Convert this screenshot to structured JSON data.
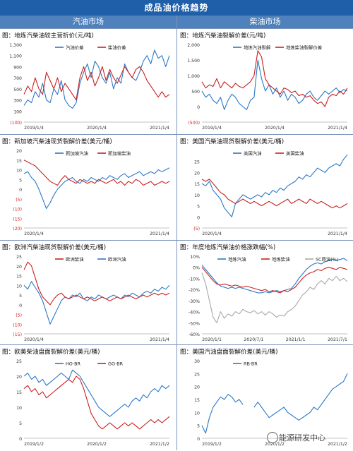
{
  "header": {
    "title": "成品油价格趋势",
    "left": "汽油市场",
    "right": "柴油市场"
  },
  "watermark": "能源研发中心",
  "colors": {
    "blue": "#2a78c8",
    "red": "#cc1f1f",
    "gray": "#a8a8a8",
    "banner": "#1f5fa9",
    "subheader": "#4f81bd"
  },
  "chart_data": [
    {
      "type": "line",
      "title": "图：地炼汽柴油较主营折价(元/吨)",
      "yticks": [
        "1,300",
        "1,100",
        "900",
        "700",
        "500",
        "300",
        "100",
        "(100)"
      ],
      "ylim": [
        -100,
        1300
      ],
      "xticks": [
        "2019/1/4",
        "2020/1/4",
        "2021/1/4"
      ],
      "legend": [
        "汽油价差",
        "柴油价差"
      ],
      "series": [
        {
          "name": "汽油价差",
          "color": "blue",
          "values": [
            200,
            300,
            250,
            450,
            350,
            600,
            300,
            250,
            500,
            400,
            650,
            300,
            200,
            150,
            250,
            600,
            800,
            950,
            700,
            1000,
            900,
            700,
            600,
            800,
            500,
            700,
            600,
            950,
            800,
            700,
            650,
            800,
            1000,
            1100,
            950,
            1200,
            1050,
            1100,
            900,
            1100
          ]
        },
        {
          "name": "柴油价差",
          "color": "red",
          "values": [
            400,
            550,
            450,
            700,
            500,
            400,
            800,
            650,
            500,
            700,
            450,
            600,
            500,
            400,
            300,
            700,
            900,
            650,
            800,
            550,
            700,
            900,
            650,
            850,
            700,
            600,
            750,
            900,
            800,
            700,
            850,
            900,
            800,
            650,
            550,
            450,
            350,
            450,
            350,
            400
          ]
        }
      ]
    },
    {
      "type": "line",
      "title": "图：地炼汽柴油裂解价差(元/吨)",
      "yticks": [
        "2,000",
        "1,500",
        "1,000",
        "500",
        "0",
        "(500)"
      ],
      "ylim": [
        -500,
        2000
      ],
      "xticks": [
        "2019/1/4",
        "2020/1/4",
        "2021/1/4"
      ],
      "legend": [
        "地炼汽油裂解",
        "地炼柴油裂解价差"
      ],
      "series": [
        {
          "name": "地炼汽油裂解",
          "color": "blue",
          "values": [
            500,
            300,
            400,
            200,
            100,
            300,
            -100,
            200,
            400,
            300,
            100,
            0,
            -100,
            200,
            300,
            1500,
            900,
            500,
            700,
            400,
            600,
            300,
            500,
            200,
            400,
            300,
            100,
            200,
            400,
            500,
            300,
            200,
            350,
            500,
            400,
            500,
            600,
            450,
            550,
            500
          ]
        },
        {
          "name": "地炼柴油裂解价差",
          "color": "red",
          "values": [
            800,
            600,
            700,
            650,
            900,
            600,
            800,
            700,
            600,
            750,
            650,
            600,
            700,
            800,
            1000,
            1800,
            1600,
            900,
            700,
            600,
            500,
            400,
            600,
            550,
            450,
            500,
            350,
            400,
            300,
            350,
            200,
            100,
            150,
            0,
            300,
            400,
            350,
            500,
            400,
            600
          ]
        }
      ]
    },
    {
      "type": "line",
      "title": "图：新加坡汽柴油现货裂解价差(美元/桶)",
      "yticks": [
        "20",
        "15",
        "10",
        "5",
        "0",
        "(5)",
        "(10)",
        "(15)",
        "(20)"
      ],
      "ylim": [
        -20,
        20
      ],
      "xticks": [
        "2020/1/4",
        "2021/1/4"
      ],
      "legend": [
        "新加坡汽油",
        "新加坡柴油"
      ],
      "series": [
        {
          "name": "新加坡汽油",
          "color": "blue",
          "values": [
            8,
            9,
            6,
            4,
            0,
            -5,
            -10,
            -7,
            -3,
            0,
            2,
            4,
            5,
            6,
            4,
            3,
            5,
            4,
            6,
            5,
            4,
            6,
            5,
            7,
            6,
            5,
            7,
            8,
            6,
            7,
            8,
            9,
            7,
            8,
            9,
            8,
            10,
            9,
            10,
            11
          ]
        },
        {
          "name": "新加坡柴油",
          "color": "red",
          "values": [
            15,
            14,
            13,
            12,
            10,
            8,
            6,
            4,
            3,
            2,
            5,
            7,
            5,
            4,
            3,
            5,
            4,
            3,
            4,
            3,
            5,
            4,
            3,
            4,
            5,
            3,
            4,
            2,
            4,
            3,
            5,
            4,
            2,
            3,
            4,
            2,
            3,
            4,
            3,
            4
          ]
        }
      ]
    },
    {
      "type": "line",
      "title": "图：美国汽柴油现货裂解价差(美元/桶)",
      "yticks": [
        "25",
        "20",
        "15",
        "10",
        "5",
        "0",
        "(5)"
      ],
      "ylim": [
        -5,
        30
      ],
      "xticks": [
        "2020/1/4",
        "2021/1/4"
      ],
      "legend": [
        "美国汽油",
        "美国柴油"
      ],
      "series": [
        {
          "name": "美国汽油",
          "color": "blue",
          "values": [
            15,
            14,
            16,
            12,
            10,
            8,
            4,
            2,
            0,
            6,
            8,
            10,
            9,
            8,
            9,
            10,
            9,
            11,
            10,
            12,
            11,
            13,
            12,
            14,
            15,
            16,
            18,
            17,
            19,
            18,
            20,
            22,
            21,
            20,
            22,
            23,
            24,
            23,
            26,
            28
          ]
        },
        {
          "name": "美国柴油",
          "color": "red",
          "values": [
            17,
            16,
            17,
            15,
            13,
            11,
            10,
            8,
            7,
            6,
            7,
            8,
            7,
            6,
            7,
            6,
            5,
            6,
            7,
            6,
            5,
            6,
            7,
            8,
            6,
            7,
            8,
            7,
            6,
            8,
            7,
            6,
            7,
            6,
            5,
            4,
            5,
            4,
            5,
            6
          ]
        }
      ]
    },
    {
      "type": "line",
      "title": "图：欧洲汽柴油现货裂解价差(美元/桶)",
      "yticks": [
        "25",
        "20",
        "15",
        "10",
        "5",
        "0",
        "(5)",
        "(10)",
        "(15)"
      ],
      "ylim": [
        -15,
        25
      ],
      "xticks": [
        "2020/1/4",
        "2021/1/4"
      ],
      "legend": [
        "欧洲柴油",
        "欧洲汽油"
      ],
      "series": [
        {
          "name": "欧洲汽油",
          "color": "blue",
          "values": [
            10,
            8,
            12,
            9,
            6,
            2,
            -4,
            -10,
            -6,
            -2,
            2,
            4,
            3,
            5,
            4,
            6,
            3,
            2,
            4,
            3,
            5,
            4,
            3,
            4,
            5,
            4,
            3,
            5,
            4,
            6,
            5,
            4,
            6,
            7,
            6,
            8,
            7,
            9,
            8,
            10
          ]
        },
        {
          "name": "欧洲柴油",
          "color": "red",
          "values": [
            18,
            22,
            20,
            14,
            8,
            4,
            2,
            0,
            3,
            5,
            6,
            4,
            3,
            4,
            5,
            4,
            3,
            4,
            3,
            2,
            3,
            4,
            3,
            2,
            3,
            4,
            3,
            4,
            5,
            4,
            3,
            4,
            5,
            4,
            5,
            6,
            5,
            6,
            5,
            6
          ]
        }
      ]
    },
    {
      "type": "line",
      "title": "图：年度地炼汽柴油价格涨跌幅(%)",
      "yticks": [
        "10%",
        "0%",
        "-10%",
        "-20%",
        "-30%",
        "-40%",
        "-50%",
        "-60%"
      ],
      "ylim": [
        -60,
        10
      ],
      "xticks": [
        "2020/1/1",
        "2020/7/1",
        "2021/1/1",
        "2021/7/1"
      ],
      "legend": [
        "地炼汽油",
        "地炼柴油",
        "SC原油(%)"
      ],
      "series": [
        {
          "name": "地炼汽油",
          "color": "blue",
          "values": [
            2,
            -2,
            -6,
            -10,
            -14,
            -17,
            -18,
            -19,
            -18,
            -19,
            -18,
            -19,
            -20,
            -21,
            -22,
            -23,
            -23,
            -22,
            -23,
            -22,
            -21,
            -22,
            -21,
            -20,
            -19,
            -15,
            -10,
            -6,
            -2,
            1,
            3,
            4,
            3,
            5,
            6,
            7,
            6,
            7,
            8,
            6
          ]
        },
        {
          "name": "地炼柴油",
          "color": "red",
          "values": [
            0,
            -4,
            -8,
            -12,
            -15,
            -16,
            -15,
            -16,
            -17,
            -16,
            -17,
            -18,
            -17,
            -18,
            -19,
            -20,
            -21,
            -20,
            -22,
            -21,
            -22,
            -23,
            -21,
            -22,
            -20,
            -18,
            -14,
            -10,
            -7,
            -5,
            -4,
            -2,
            -3,
            -1,
            0,
            -1,
            -2,
            0,
            -1,
            -2
          ]
        },
        {
          "name": "SC原油(%)",
          "color": "gray",
          "values": [
            -5,
            -15,
            -30,
            -45,
            -50,
            -40,
            -46,
            -42,
            -44,
            -40,
            -42,
            -38,
            -40,
            -41,
            -39,
            -42,
            -40,
            -43,
            -40,
            -42,
            -45,
            -43,
            -44,
            -40,
            -38,
            -35,
            -30,
            -25,
            -22,
            -18,
            -20,
            -15,
            -12,
            -15,
            -10,
            -12,
            -8,
            -12,
            -10,
            -13
          ]
        }
      ]
    },
    {
      "type": "line",
      "title": "图：欧美柴油盘面裂解价差(美元/桶)",
      "yticks": [
        "25",
        "20",
        "15",
        "10",
        "5",
        "0"
      ],
      "ylim": [
        0,
        25
      ],
      "xticks": [
        "2019/1/2",
        "2020/1/2",
        "2021/1/2"
      ],
      "legend": [
        "HO-BR",
        "GO-BR"
      ],
      "series": [
        {
          "name": "HO-BR",
          "color": "blue",
          "values": [
            20,
            21,
            19,
            20,
            18,
            19,
            17,
            18,
            19,
            20,
            21,
            20,
            19,
            22,
            21,
            20,
            18,
            16,
            14,
            12,
            10,
            9,
            8,
            7,
            8,
            9,
            10,
            11,
            10,
            12,
            13,
            12,
            14,
            13,
            15,
            16,
            15,
            17,
            16,
            17
          ]
        },
        {
          "name": "GO-BR",
          "color": "red",
          "values": [
            16,
            17,
            15,
            16,
            14,
            15,
            13,
            14,
            15,
            16,
            17,
            18,
            19,
            18,
            20,
            19,
            16,
            12,
            8,
            6,
            4,
            3,
            4,
            5,
            4,
            3,
            4,
            5,
            4,
            5,
            4,
            3,
            4,
            5,
            6,
            5,
            6,
            5,
            6,
            7
          ]
        }
      ]
    },
    {
      "type": "line",
      "title": "图：美国汽油盘面裂解价差(美元/桶)",
      "yticks": [
        "30",
        "25",
        "20",
        "15",
        "10",
        "5",
        "0"
      ],
      "ylim": [
        0,
        30
      ],
      "xticks": [
        "2019/1/2",
        "2020/1/2",
        "2021/1/2"
      ],
      "legend": [
        "RB-BR"
      ],
      "series": [
        {
          "name": "RB-BR",
          "color": "blue",
          "values": [
            5,
            2,
            8,
            12,
            14,
            16,
            15,
            17,
            16,
            14,
            15,
            13,
            null,
            null,
            12,
            14,
            12,
            10,
            8,
            9,
            10,
            11,
            12,
            10,
            9,
            8,
            7,
            8,
            9,
            10,
            12,
            11,
            13,
            15,
            17,
            19,
            20,
            21,
            22,
            25
          ]
        }
      ]
    }
  ]
}
